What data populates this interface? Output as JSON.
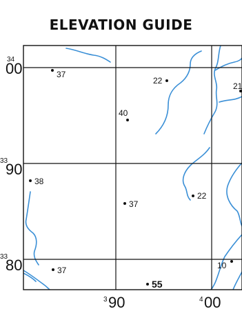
{
  "title": "ELEVATION GUIDE",
  "colors": {
    "water": "#3a8fd6",
    "grid": "#111111",
    "frame": "#111111"
  },
  "grid": {
    "northings": [
      {
        "prefix": "34",
        "value": "00"
      },
      {
        "prefix": "33",
        "value": "90"
      },
      {
        "prefix": "33",
        "value": "80"
      }
    ],
    "eastings": [
      {
        "prefix": "3",
        "value": "90"
      },
      {
        "prefix": "4",
        "value": "00"
      }
    ]
  },
  "spot_heights": [
    {
      "label": "37"
    },
    {
      "label": "22"
    },
    {
      "label": "21"
    },
    {
      "label": "40"
    },
    {
      "label": "38"
    },
    {
      "label": "37"
    },
    {
      "label": "22"
    },
    {
      "label": "37"
    },
    {
      "label": "10"
    },
    {
      "label": "55"
    }
  ]
}
